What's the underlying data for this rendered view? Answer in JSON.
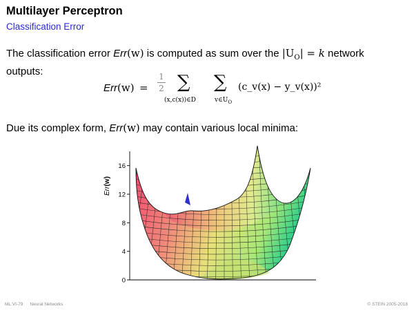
{
  "slide": {
    "title": "Multilayer Perceptron",
    "subtitle": "Classification Error"
  },
  "para1": {
    "t1": "The classification error ",
    "err": "Err",
    "w": "(w)",
    "t2": " is computed as sum over the ",
    "uo": "|U",
    "uo_sub": "O",
    "uo_end": "| = ",
    "k": "k",
    "t3": " network outputs:"
  },
  "formula": {
    "lhs_err": "Err",
    "lhs_w": "(w)",
    "eq": "=",
    "frac_num": "1",
    "frac_den": "2",
    "sum": "∑",
    "sub1": "(x,c(x))∈D",
    "sub2": "v∈U",
    "sub2_o": "O",
    "term": "(c_v(x) − y_v(x))²"
  },
  "para2": {
    "t1": "Due its complex form, ",
    "err": "Err",
    "w": "(w)",
    "t2": " may contain various local minima:"
  },
  "plot": {
    "ylabel_err": "Err",
    "ylabel_w": "(w)",
    "ticks": [
      "0",
      "4",
      "8",
      "12",
      "16"
    ],
    "tick_values": [
      0,
      4,
      8,
      12,
      16
    ],
    "ylim": [
      0,
      18
    ]
  },
  "footer": {
    "left": "ML:VI-79",
    "left2": "Neural Networks",
    "right": "© STEIN 2005-2018"
  }
}
